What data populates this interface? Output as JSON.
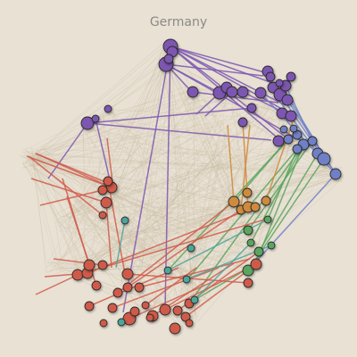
{
  "title": "Germany",
  "colors": {
    "background": "#e8e1d4",
    "purple": "#7b56b0",
    "blue": "#6f80c6",
    "red": "#d05a4a",
    "orange": "#cf8a3c",
    "green": "#5aa55e",
    "teal": "#4ea59a",
    "faint_edge": "#c7b99f"
  }
}
